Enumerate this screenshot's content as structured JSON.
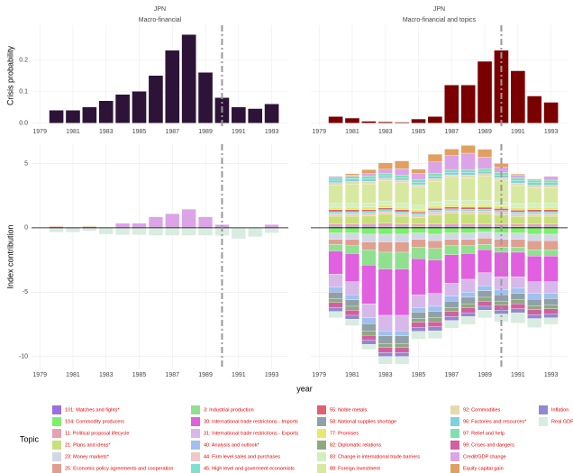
{
  "chart_data": [
    {
      "type": "bar",
      "title": "JPN",
      "subtitle": "Macro-financial",
      "ylabel": "Crisis probability",
      "x": [
        1980,
        1981,
        1982,
        1983,
        1984,
        1985,
        1986,
        1987,
        1988,
        1989,
        1990,
        1991,
        1992,
        1993
      ],
      "values": [
        0.04,
        0.04,
        0.05,
        0.07,
        0.09,
        0.1,
        0.15,
        0.23,
        0.28,
        0.16,
        0.08,
        0.05,
        0.045,
        0.06
      ],
      "color": "#2e1338",
      "xlim": [
        1978.5,
        1994
      ],
      "ylim": [
        -0.01,
        0.31
      ],
      "xticks": [
        1979,
        1981,
        1983,
        1985,
        1987,
        1989,
        1991,
        1993
      ],
      "yticks": [
        {
          "value": 0,
          "label": "0.0"
        },
        {
          "value": 0.1,
          "label": "0.1"
        },
        {
          "value": 0.2,
          "label": "0.2"
        }
      ],
      "vline": 1990,
      "grid": true
    },
    {
      "type": "bar",
      "title": "JPN",
      "subtitle": "Macro-financial and topics",
      "x": [
        1980,
        1981,
        1982,
        1983,
        1984,
        1985,
        1986,
        1987,
        1988,
        1989,
        1990,
        1991,
        1992,
        1993
      ],
      "values": [
        0.02,
        0.015,
        0.005,
        0.003,
        0.002,
        0.012,
        0.02,
        0.12,
        0.12,
        0.195,
        0.23,
        0.165,
        0.085,
        0.065
      ],
      "color": "#7a0000",
      "xlim": [
        1978.5,
        1994
      ],
      "ylim": [
        -0.01,
        0.31
      ],
      "xticks": [
        1979,
        1981,
        1983,
        1985,
        1987,
        1989,
        1991,
        1993
      ],
      "yticks": [
        0,
        0.1,
        0.2
      ],
      "vline": 1990,
      "grid": true
    },
    {
      "type": "stacked_bar",
      "ylabel": "Index contribution",
      "xlabel": "year",
      "x": [
        1980,
        1981,
        1982,
        1983,
        1984,
        1985,
        1986,
        1987,
        1988,
        1989,
        1990,
        1991,
        1992,
        1993
      ],
      "series": [
        {
          "name": "Credit/GDP change",
          "color": "#dca4e6",
          "values": [
            0,
            0,
            0,
            0.05,
            0.35,
            0.35,
            0.85,
            1.1,
            1.45,
            0.85,
            0.25,
            0,
            0,
            0.25
          ]
        },
        {
          "name": "Equity capital gain",
          "color": "#e0a060",
          "values": [
            0.1,
            0.05,
            0.1,
            0,
            0,
            0,
            0,
            0,
            0,
            0,
            0,
            0,
            0,
            0
          ]
        },
        {
          "name": "Inflation",
          "color": "#9088d0",
          "values": [
            -0.05,
            -0.05,
            -0.05,
            0,
            0,
            0,
            0,
            0,
            0,
            0,
            0,
            0,
            0,
            0
          ]
        },
        {
          "name": "Real GDP growth",
          "color": "#d8ece0",
          "values": [
            -0.3,
            -0.3,
            -0.2,
            -0.5,
            -0.55,
            -0.55,
            -0.6,
            -0.6,
            -0.6,
            -0.6,
            -0.6,
            -0.85,
            -0.7,
            -0.4
          ]
        }
      ],
      "xlim": [
        1978.5,
        1994
      ],
      "ylim": [
        -11,
        6.5
      ],
      "xticks": [
        1979,
        1981,
        1983,
        1985,
        1987,
        1989,
        1991,
        1993
      ],
      "yticks": [
        -10,
        -5,
        0,
        5
      ],
      "vline": 1990,
      "grid": true
    },
    {
      "type": "stacked_bar",
      "legend_title": "Topic",
      "x": [
        1980,
        1981,
        1982,
        1983,
        1984,
        1985,
        1986,
        1987,
        1988,
        1989,
        1990,
        1991,
        1992,
        1993
      ],
      "series": [
        {
          "name": "101: Matches and fights*",
          "color": "#9b6ee0",
          "values": [
            0.1,
            0.1,
            0.12,
            0.1,
            0.1,
            0.08,
            0.1,
            0.12,
            0.1,
            0.1,
            0.1,
            0.08,
            0.1,
            0.1
          ]
        },
        {
          "name": "104: Commodity producers",
          "color": "#7cf06a",
          "values": [
            -0.4,
            -0.4,
            -0.5,
            -0.5,
            -0.5,
            -0.4,
            -0.5,
            -0.4,
            -0.4,
            -0.3,
            -0.4,
            -0.4,
            -0.5,
            -0.5
          ]
        },
        {
          "name": "11: Political proposal lifecycle",
          "color": "#e8a0b4",
          "values": [
            0.2,
            0.2,
            0.2,
            0.25,
            0.2,
            0.2,
            0.2,
            0.2,
            0.2,
            0.2,
            0.2,
            0.2,
            0.2,
            0.2
          ]
        },
        {
          "name": "21: Plans and ideas*",
          "color": "#c8e07a",
          "values": [
            0.6,
            0.6,
            0.6,
            0.7,
            0.6,
            0.5,
            0.7,
            0.8,
            0.8,
            0.8,
            0.7,
            0.6,
            0.6,
            0.6
          ]
        },
        {
          "name": "23: Money markets*",
          "color": "#d0d8e8",
          "values": [
            -0.5,
            -0.5,
            -0.6,
            -0.6,
            -0.6,
            -0.5,
            -0.5,
            -0.5,
            -0.5,
            -0.5,
            -0.5,
            -0.5,
            -0.5,
            -0.5
          ]
        },
        {
          "name": "25: Economic policy agreements and cooperation",
          "color": "#e0a090",
          "values": [
            -0.4,
            -0.5,
            -0.6,
            -0.8,
            -0.8,
            -0.6,
            -0.6,
            -0.5,
            -0.5,
            -0.5,
            -0.6,
            -0.6,
            -0.7,
            -0.7
          ]
        },
        {
          "name": "3: Industrial production",
          "color": "#90e090",
          "values": [
            -0.5,
            -0.6,
            -1.2,
            -1.3,
            -1.3,
            -0.9,
            -0.9,
            -0.7,
            -0.6,
            -0.4,
            -0.4,
            -0.4,
            -0.5,
            -0.5
          ]
        },
        {
          "name": "30: International trade restrictions - Imports",
          "color": "#e060e0",
          "values": [
            -1.8,
            -2.2,
            -3,
            -3.6,
            -3.6,
            -2.8,
            -2.6,
            -2.2,
            -2,
            -1.8,
            -1.9,
            -1.9,
            -2,
            -2
          ]
        },
        {
          "name": "31: International trade restrictions - Exports",
          "color": "#d8b8e8",
          "values": [
            -1,
            -1,
            -1.1,
            -1.2,
            -1.2,
            -1,
            -1,
            -1,
            -1,
            -1,
            -1,
            -0.9,
            -0.9,
            -0.9
          ]
        },
        {
          "name": "40: Analysis and outlook*",
          "color": "#a0c0f0",
          "values": [
            -0.4,
            -0.4,
            -0.45,
            -0.4,
            -0.4,
            -0.35,
            -0.4,
            -0.4,
            -0.4,
            -0.4,
            -0.4,
            -0.4,
            -0.45,
            -0.4
          ]
        },
        {
          "name": "44: Firm level sales and purchases",
          "color": "#f0c8c8",
          "values": [
            0.2,
            0.2,
            0.2,
            0.2,
            0.2,
            0.2,
            0.22,
            0.2,
            0.2,
            0.2,
            0.2,
            0.2,
            0.2,
            0.2
          ]
        },
        {
          "name": "45: High level and goverment economists",
          "color": "#80e0d0",
          "values": [
            0.15,
            0.15,
            0.15,
            0.15,
            0.15,
            0.15,
            0.15,
            0.15,
            0.15,
            0.15,
            0.15,
            0.15,
            0.15,
            0.15
          ]
        },
        {
          "name": "55: Noble metals",
          "color": "#e06070",
          "values": [
            0.15,
            0.15,
            0.15,
            0.15,
            0.15,
            0.12,
            0.15,
            0.15,
            0.15,
            0.15,
            0.15,
            0.15,
            0.15,
            0.15
          ]
        },
        {
          "name": "58: National supplies shortage",
          "color": "#90a0a8",
          "values": [
            -0.5,
            -0.5,
            -0.6,
            -0.6,
            -0.6,
            -0.5,
            -0.5,
            -0.5,
            -0.5,
            -0.5,
            -0.5,
            -0.5,
            -0.5,
            -0.5
          ]
        },
        {
          "name": "77: Promises",
          "color": "#e8e870",
          "values": [
            0.2,
            0.2,
            0.2,
            0.2,
            0.2,
            0.2,
            0.2,
            0.2,
            0.2,
            0.2,
            0.2,
            0.2,
            0.2,
            0.2
          ]
        },
        {
          "name": "82: Diplomatic relations",
          "color": "#90a880",
          "values": [
            -0.3,
            -0.3,
            -0.3,
            -0.3,
            -0.3,
            -0.3,
            -0.3,
            -0.3,
            -0.3,
            -0.3,
            -0.3,
            -0.3,
            -0.3,
            -0.3
          ]
        },
        {
          "name": "83: Change in international trade barriers",
          "color": "#d0f0c0",
          "values": [
            0.3,
            0.3,
            0.3,
            0.3,
            0.3,
            0.3,
            0.3,
            0.3,
            0.3,
            0.3,
            0.3,
            0.3,
            0.3,
            0.3
          ]
        },
        {
          "name": "88: Foreign investment",
          "color": "#d8e8a0",
          "values": [
            1.4,
            1.5,
            1.5,
            1.6,
            1.6,
            1.4,
            1.6,
            1.8,
            1.8,
            1.9,
            1.7,
            1.4,
            1.2,
            1.2
          ]
        },
        {
          "name": "92: Commodities",
          "color": "#e8d8b0",
          "values": [
            0.2,
            0.2,
            0.2,
            0.2,
            0.2,
            0.2,
            0.2,
            0.2,
            0.2,
            0.2,
            0.2,
            0.2,
            0.2,
            0.2
          ]
        },
        {
          "name": "96: Factories and resources*",
          "color": "#80d0e0",
          "values": [
            0.2,
            0.2,
            0.2,
            0.2,
            0.2,
            0.2,
            0.2,
            0.2,
            0.2,
            0.2,
            0.2,
            0.2,
            0.2,
            0.2
          ]
        },
        {
          "name": "97: Relief and help",
          "color": "#80e0b0",
          "values": [
            0.2,
            0.2,
            0.2,
            0.2,
            0.2,
            0.2,
            0.2,
            0.2,
            0.2,
            0.2,
            0.2,
            0.2,
            0.2,
            0.2
          ]
        },
        {
          "name": "99: Crises and dangers",
          "color": "#d060a0",
          "values": [
            -0.4,
            -0.4,
            -0.4,
            -0.4,
            -0.4,
            -0.4,
            -0.4,
            -0.4,
            -0.4,
            -0.4,
            -0.4,
            -0.4,
            -0.4,
            -0.4
          ]
        },
        {
          "name": "Credit/GDP change",
          "color": "#dca4e6",
          "values": [
            0.1,
            0.1,
            0.2,
            0.3,
            0.5,
            0.5,
            0.9,
            1.1,
            1.3,
            0.9,
            0.4,
            0.2,
            0.1,
            0.3
          ]
        },
        {
          "name": "Equity capital gain",
          "color": "#e0a060",
          "values": [
            0,
            0.1,
            0.3,
            0.5,
            0.6,
            0.3,
            0.6,
            0.5,
            0.6,
            0.6,
            0.3,
            0.1,
            0,
            0
          ]
        },
        {
          "name": "Inflation",
          "color": "#9088d0",
          "values": [
            -0.3,
            -0.3,
            -0.3,
            -0.3,
            -0.3,
            -0.3,
            -0.3,
            -0.3,
            -0.3,
            -0.3,
            -0.3,
            -0.3,
            -0.3,
            -0.3
          ]
        },
        {
          "name": "Real GDP growth",
          "color": "#d8ece0",
          "values": [
            -0.5,
            -0.5,
            -0.4,
            -0.6,
            -0.6,
            -0.6,
            -0.6,
            -0.6,
            -0.6,
            -0.6,
            -0.6,
            -0.8,
            -0.7,
            -0.5
          ]
        }
      ],
      "xlim": [
        1978.5,
        1994
      ],
      "ylim": [
        -11,
        6.5
      ],
      "xticks": [
        1979,
        1981,
        1983,
        1985,
        1987,
        1989,
        1991,
        1993
      ],
      "yticks": [
        -10,
        -5,
        0,
        5
      ],
      "vline": 1990,
      "grid": true
    }
  ]
}
